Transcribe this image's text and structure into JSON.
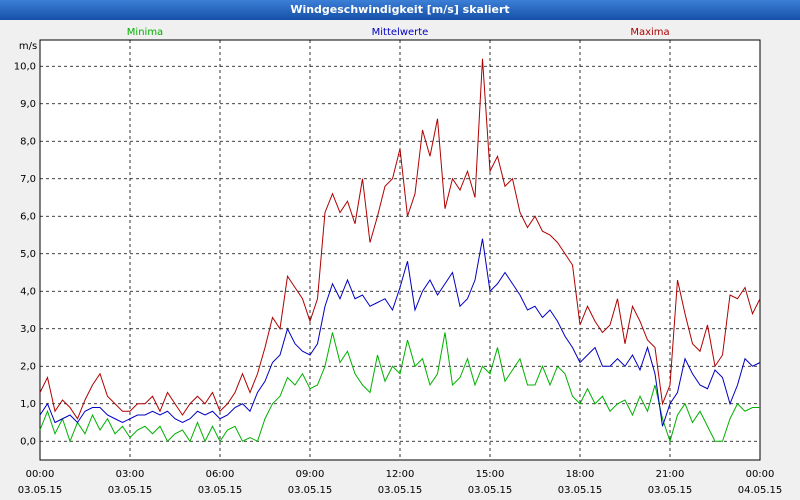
{
  "chart_data": {
    "type": "line",
    "title": "Windgeschwindigkeit [m/s] skaliert",
    "y_label": "m/s",
    "x": [
      0,
      0.25,
      0.5,
      0.75,
      1,
      1.25,
      1.5,
      1.75,
      2,
      2.25,
      2.5,
      2.75,
      3,
      3.25,
      3.5,
      3.75,
      4,
      4.25,
      4.5,
      4.75,
      5,
      5.25,
      5.5,
      5.75,
      6,
      6.25,
      6.5,
      6.75,
      7,
      7.25,
      7.5,
      7.75,
      8,
      8.25,
      8.5,
      8.75,
      9,
      9.25,
      9.5,
      9.75,
      10,
      10.25,
      10.5,
      10.75,
      11,
      11.25,
      11.5,
      11.75,
      12,
      12.25,
      12.5,
      12.75,
      13,
      13.25,
      13.5,
      13.75,
      14,
      14.25,
      14.5,
      14.75,
      15,
      15.25,
      15.5,
      15.75,
      16,
      16.25,
      16.5,
      16.75,
      17,
      17.25,
      17.5,
      17.75,
      18,
      18.25,
      18.5,
      18.75,
      19,
      19.25,
      19.5,
      19.75,
      20,
      20.25,
      20.5,
      20.75,
      21,
      21.25,
      21.5,
      21.75,
      22,
      22.25,
      22.5,
      22.75,
      23,
      23.25,
      23.5,
      23.75,
      24
    ],
    "series": [
      {
        "name": "Minima",
        "color": "#00b000",
        "values": [
          0.3,
          0.8,
          0.2,
          0.6,
          0.0,
          0.5,
          0.2,
          0.7,
          0.3,
          0.6,
          0.2,
          0.4,
          0.1,
          0.3,
          0.4,
          0.2,
          0.4,
          0.0,
          0.2,
          0.3,
          0.0,
          0.5,
          0.0,
          0.4,
          0.0,
          0.3,
          0.4,
          0.0,
          0.1,
          0.0,
          0.6,
          1.0,
          1.2,
          1.7,
          1.5,
          1.8,
          1.4,
          1.5,
          2.0,
          2.9,
          2.1,
          2.4,
          1.8,
          1.5,
          1.3,
          2.3,
          1.6,
          2.0,
          1.8,
          2.7,
          2.0,
          2.2,
          1.5,
          1.8,
          2.9,
          1.5,
          1.7,
          2.2,
          1.5,
          2.0,
          1.8,
          2.5,
          1.6,
          1.9,
          2.2,
          1.5,
          1.5,
          2.0,
          1.5,
          2.0,
          1.8,
          1.2,
          1.0,
          1.4,
          1.0,
          1.2,
          0.8,
          1.0,
          1.1,
          0.7,
          1.2,
          0.8,
          1.5,
          0.6,
          0.0,
          0.7,
          1.0,
          0.5,
          0.8,
          0.4,
          0.0,
          0.0,
          0.6,
          1.0,
          0.8,
          0.9,
          0.9
        ]
      },
      {
        "name": "Mittelwerte",
        "color": "#0000c0",
        "values": [
          0.7,
          1.0,
          0.5,
          0.6,
          0.7,
          0.5,
          0.8,
          0.9,
          0.9,
          0.7,
          0.6,
          0.5,
          0.6,
          0.7,
          0.7,
          0.8,
          0.7,
          0.8,
          0.6,
          0.5,
          0.6,
          0.8,
          0.7,
          0.8,
          0.6,
          0.7,
          0.9,
          1.0,
          0.8,
          1.3,
          1.6,
          2.1,
          2.3,
          3.0,
          2.6,
          2.4,
          2.3,
          2.6,
          3.6,
          4.2,
          3.8,
          4.3,
          3.8,
          3.9,
          3.6,
          3.7,
          3.8,
          3.5,
          4.1,
          4.8,
          3.5,
          4.0,
          4.3,
          3.9,
          4.2,
          4.5,
          3.6,
          3.8,
          4.3,
          5.4,
          4.0,
          4.2,
          4.5,
          4.2,
          3.9,
          3.5,
          3.6,
          3.3,
          3.5,
          3.2,
          2.8,
          2.5,
          2.1,
          2.3,
          2.5,
          2.0,
          2.0,
          2.2,
          2.0,
          2.3,
          1.9,
          2.5,
          1.8,
          0.4,
          1.0,
          1.3,
          2.2,
          1.8,
          1.5,
          1.4,
          1.9,
          1.7,
          1.0,
          1.5,
          2.2,
          2.0,
          2.1
        ]
      },
      {
        "name": "Maxima",
        "color": "#b00000",
        "values": [
          1.3,
          1.7,
          0.8,
          1.1,
          0.9,
          0.6,
          1.1,
          1.5,
          1.8,
          1.2,
          1.0,
          0.8,
          0.8,
          1.0,
          1.0,
          1.2,
          0.8,
          1.3,
          1.0,
          0.7,
          1.0,
          1.2,
          1.0,
          1.3,
          0.8,
          1.0,
          1.3,
          1.8,
          1.3,
          1.8,
          2.5,
          3.3,
          3.0,
          4.4,
          4.1,
          3.8,
          3.2,
          3.8,
          6.1,
          6.6,
          6.1,
          6.4,
          5.8,
          7.0,
          5.3,
          6.0,
          6.8,
          7.0,
          7.8,
          6.0,
          6.6,
          8.3,
          7.6,
          8.6,
          6.2,
          7.0,
          6.7,
          7.2,
          6.5,
          10.2,
          7.2,
          7.6,
          6.8,
          7.0,
          6.1,
          5.7,
          6.0,
          5.6,
          5.5,
          5.3,
          5.0,
          4.7,
          3.1,
          3.6,
          3.2,
          2.9,
          3.1,
          3.8,
          2.6,
          3.6,
          3.2,
          2.7,
          2.5,
          1.0,
          1.5,
          4.3,
          3.4,
          2.6,
          2.4,
          3.1,
          2.0,
          2.3,
          3.9,
          3.8,
          4.1,
          3.4,
          3.8
        ]
      }
    ],
    "xlim": [
      0,
      24
    ],
    "xticks": [
      {
        "value": 0,
        "label": "00:00",
        "date": "03.05.15"
      },
      {
        "value": 3,
        "label": "03:00",
        "date": "03.05.15"
      },
      {
        "value": 6,
        "label": "06:00",
        "date": "03.05.15"
      },
      {
        "value": 9,
        "label": "09:00",
        "date": "03.05.15"
      },
      {
        "value": 12,
        "label": "12:00",
        "date": "03.05.15"
      },
      {
        "value": 15,
        "label": "15:00",
        "date": "03.05.15"
      },
      {
        "value": 18,
        "label": "18:00",
        "date": "03.05.15"
      },
      {
        "value": 21,
        "label": "21:00",
        "date": "03.05.15"
      },
      {
        "value": 24,
        "label": "00:00",
        "date": "04.05.15"
      }
    ],
    "ylim": [
      -0.5,
      10.7
    ],
    "yticks": [
      {
        "value": 0,
        "label": "0,0"
      },
      {
        "value": 1,
        "label": "1,0"
      },
      {
        "value": 2,
        "label": "2,0"
      },
      {
        "value": 3,
        "label": "3,0"
      },
      {
        "value": 4,
        "label": "4,0"
      },
      {
        "value": 5,
        "label": "5,0"
      },
      {
        "value": 6,
        "label": "6,0"
      },
      {
        "value": 7,
        "label": "7,0"
      },
      {
        "value": 8,
        "label": "8,0"
      },
      {
        "value": 9,
        "label": "9,0"
      },
      {
        "value": 10,
        "label": "10,0"
      }
    ],
    "grid": true
  }
}
